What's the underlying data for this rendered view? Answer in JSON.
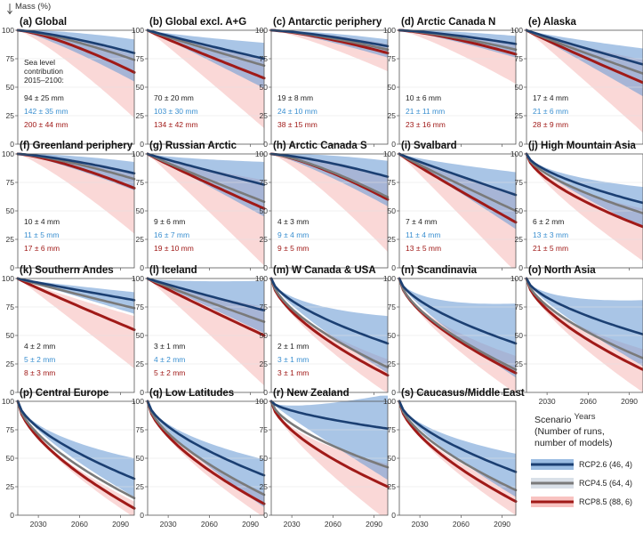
{
  "chart_data": {
    "type": "line",
    "ylabel": "Mass (%)",
    "xlabel": "Years",
    "xlim": [
      2015,
      2100
    ],
    "ylim": [
      0,
      100
    ],
    "xticks": [
      2030,
      2060,
      2090
    ],
    "yticks": [
      0,
      25,
      50,
      75,
      100
    ],
    "colors": {
      "RCP2.6": "#1b3f72",
      "RCP4.5": "#7a7a7a",
      "RCP8.5": "#a01a18",
      "band26": "#6f9fd6",
      "band85": "#f5a9a6",
      "ann_black": "#222222",
      "ann_blue": "#3a8fd0",
      "ann_red": "#a01a18"
    },
    "legend": {
      "title": [
        "Scenario",
        "(Number of runs,",
        "number of models)"
      ],
      "entries": [
        {
          "label": "RCP2.6 (46, 4)",
          "color": "#1b3f72"
        },
        {
          "label": "RCP4.5 (64, 4)",
          "color": "#7a7a7a"
        },
        {
          "label": "RCP8.5 (88, 6)",
          "color": "#a01a18"
        }
      ],
      "placement": "bottom-right"
    },
    "sea_level_header": [
      "Sea level",
      "contribution",
      "2015–2100:"
    ],
    "panels": [
      {
        "title": "(a) Global",
        "end": [
          80,
          74,
          63
        ],
        "band26": [
          12,
          25
        ],
        "band85": [
          15,
          40
        ],
        "sl": [
          "94 ± 25 mm",
          "142 ± 35 mm",
          "200 ± 44 mm"
        ]
      },
      {
        "title": "(b) Global excl. A+G",
        "end": [
          75,
          69,
          58
        ],
        "band26": [
          14,
          26
        ],
        "band85": [
          18,
          44
        ],
        "sl": [
          "70 ± 20 mm",
          "103 ± 30 mm",
          "134 ± 42 mm"
        ]
      },
      {
        "title": "(c) Antarctic periphery",
        "end": [
          86,
          83,
          80
        ],
        "band26": [
          6,
          10
        ],
        "band85": [
          8,
          16
        ],
        "sl": [
          "19 ± 8 mm",
          "24 ± 10 mm",
          "38 ± 15 mm"
        ]
      },
      {
        "title": "(d) Arctic Canada N",
        "end": [
          88,
          83,
          79
        ],
        "band26": [
          7,
          12
        ],
        "band85": [
          10,
          26
        ],
        "sl": [
          "10 ± 6 mm",
          "21 ± 11 mm",
          "23 ± 16 mm"
        ]
      },
      {
        "title": "(e) Alaska",
        "end": [
          70,
          62,
          54
        ],
        "band26": [
          14,
          28
        ],
        "band85": [
          20,
          44
        ],
        "sl": [
          "17 ± 4 mm",
          "21 ± 6 mm",
          "28 ± 9 mm"
        ]
      },
      {
        "title": "(f) Greenland periphery",
        "end": [
          83,
          78,
          70
        ],
        "band26": [
          10,
          15
        ],
        "band85": [
          14,
          40
        ],
        "sl": [
          "10 ± 4 mm",
          "11 ± 5 mm",
          "17 ± 6 mm"
        ]
      },
      {
        "title": "(g) Russian Arctic",
        "end": [
          73,
          58,
          52
        ],
        "band26": [
          20,
          28
        ],
        "band85": [
          25,
          50
        ],
        "sl": [
          "9 ± 6 mm",
          "16 ± 7 mm",
          "19 ± 10 mm"
        ]
      },
      {
        "title": "(h) Arctic Canada S",
        "end": [
          80,
          62,
          60
        ],
        "band26": [
          14,
          26
        ],
        "band85": [
          20,
          46
        ],
        "sl": [
          "4 ± 3 mm",
          "9 ± 4 mm",
          "9 ± 5 mm"
        ]
      },
      {
        "title": "(i) Svalbard",
        "end": [
          64,
          50,
          40
        ],
        "band26": [
          20,
          30
        ],
        "band85": [
          26,
          44
        ],
        "sl": [
          "7 ± 4 mm",
          "11 ± 4 mm",
          "13 ± 5 mm"
        ]
      },
      {
        "title": "(j) High Mountain Asia",
        "end": [
          57,
          48,
          36
        ],
        "band26": [
          14,
          22
        ],
        "band85": [
          16,
          30
        ],
        "sl": [
          "6 ± 2 mm",
          "13 ± 3 mm",
          "21 ± 5 mm"
        ]
      },
      {
        "title": "(k) Southern Andes",
        "end": [
          81,
          74,
          55
        ],
        "band26": [
          7,
          12
        ],
        "band85": [
          12,
          34
        ],
        "sl": [
          "4 ± 2 mm",
          "5 ± 2 mm",
          "8 ± 3 mm"
        ]
      },
      {
        "title": "(l) Iceland",
        "end": [
          72,
          62,
          50
        ],
        "band26": [
          26,
          20
        ],
        "band85": [
          25,
          44
        ],
        "sl": [
          "3 ± 1 mm",
          "4 ± 2 mm",
          "5 ± 2 mm"
        ]
      },
      {
        "title": "(m) W Canada & USA",
        "end": [
          43,
          22,
          15
        ],
        "band26": [
          24,
          26
        ],
        "band85": [
          14,
          16
        ],
        "sl": [
          "2 ± 1 mm",
          "3 ± 1 mm",
          "3 ± 1 mm"
        ]
      },
      {
        "title": "(n) Scandinavia",
        "end": [
          43,
          20,
          17
        ],
        "band26": [
          35,
          30
        ],
        "band85": [
          15,
          18
        ],
        "sl": [
          "",
          "",
          ""
        ]
      },
      {
        "title": "(o) North Asia",
        "end": [
          51,
          30,
          20
        ],
        "band26": [
          30,
          28
        ],
        "band85": [
          18,
          20
        ],
        "sl": [
          "",
          "",
          ""
        ]
      },
      {
        "title": "(p) Central Europe",
        "end": [
          32,
          15,
          6
        ],
        "band26": [
          18,
          16
        ],
        "band85": [
          6,
          8
        ],
        "sl": [
          "",
          "",
          ""
        ]
      },
      {
        "title": "(q) Low Latitudes",
        "end": [
          35,
          18,
          10
        ],
        "band26": [
          14,
          28
        ],
        "band85": [
          10,
          12
        ],
        "sl": [
          "",
          "",
          ""
        ]
      },
      {
        "title": "(r) New Zealand",
        "end": [
          76,
          42,
          25
        ],
        "band26": [
          30,
          45
        ],
        "band85": [
          20,
          30
        ],
        "sl": [
          "",
          "",
          ""
        ]
      },
      {
        "title": "(s) Caucasus/Middle East",
        "end": [
          38,
          22,
          12
        ],
        "band26": [
          16,
          22
        ],
        "band85": [
          10,
          12
        ],
        "sl": [
          "",
          "",
          ""
        ]
      }
    ]
  }
}
